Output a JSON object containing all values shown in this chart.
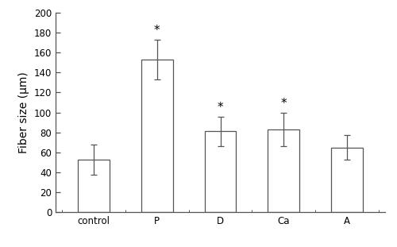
{
  "categories": [
    "control",
    "P",
    "D",
    "Ca",
    "A"
  ],
  "values": [
    53,
    153,
    81,
    83,
    65
  ],
  "errors": [
    15,
    20,
    15,
    17,
    12
  ],
  "significant": [
    false,
    true,
    true,
    true,
    false
  ],
  "bar_color": "#ffffff",
  "bar_edgecolor": "#555555",
  "ylabel": "Fiber size (μm)",
  "ylim": [
    0,
    200
  ],
  "yticks": [
    0,
    20,
    40,
    60,
    80,
    100,
    120,
    140,
    160,
    180,
    200
  ],
  "bar_width": 0.5,
  "error_capsize": 3,
  "star_fontsize": 11,
  "tick_fontsize": 8.5,
  "ylabel_fontsize": 10
}
